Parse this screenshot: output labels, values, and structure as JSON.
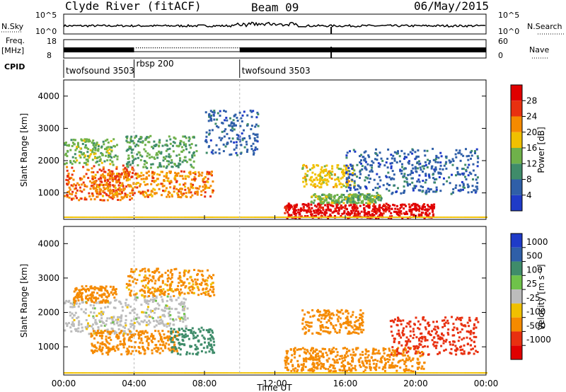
{
  "header": {
    "title": "Clyde River (fitACF)",
    "beam": "Beam 09",
    "date": "06/May/2015"
  },
  "upper_panels": {
    "nsky_label": "N.Sky",
    "nsky_ticks": [
      "10^5",
      "10^0"
    ],
    "nsearch_label": "N.Search",
    "nsearch_ticks": [
      "10^5",
      "10^0"
    ],
    "freq_label": "Freq.",
    "freq_unit": "[MHz]",
    "freq_ticks": [
      "18",
      "8"
    ],
    "nave_label": "Nave",
    "nave_ticks": [
      "60",
      "0"
    ],
    "cpid_label": "CPID",
    "cpid_segments": [
      {
        "name": "twofsound 3503",
        "start_h": 0.0,
        "end_h": 4.0
      },
      {
        "name": "rbsp 200",
        "start_h": 4.0,
        "end_h": 10.0
      },
      {
        "name": "twofsound 3503",
        "start_h": 10.0,
        "end_h": 24.0
      }
    ]
  },
  "power_colorbar": {
    "label": "Power [dB]",
    "ticks": [
      "4",
      "8",
      "12",
      "16",
      "20",
      "24",
      "28"
    ],
    "colors": [
      "#1f3bc8",
      "#2f5fa8",
      "#3f8c6a",
      "#6fb14a",
      "#f0c000",
      "#f58a00",
      "#e83010",
      "#e00000"
    ]
  },
  "velocity_colorbar": {
    "label": "Velocity [m s⁻¹]",
    "ticks": [
      "1000",
      "500",
      "100",
      "25",
      "-25",
      "-100",
      "-500",
      "-1000"
    ],
    "colors": [
      "#1f3bc8",
      "#2f5fa8",
      "#3f8c6a",
      "#6fc24a",
      "#bcbcbc",
      "#f0c000",
      "#f58a00",
      "#e83010",
      "#e00000"
    ]
  },
  "chart_data": [
    {
      "type": "heatmap",
      "title": "",
      "xlabel": "",
      "ylabel": "Slant Range [km]",
      "xlim": [
        0,
        24
      ],
      "ylim": [
        180,
        4500
      ],
      "x_ticks": [
        "00:00",
        "04:00",
        "08:00",
        "12:00",
        "16:00",
        "20:00",
        "00:00"
      ],
      "y_ticks": [
        1000,
        2000,
        3000,
        4000
      ],
      "colorbar": "Power [dB]",
      "regions": [
        {
          "t0": 0.0,
          "t1": 4.0,
          "r0": 800,
          "r1": 1900,
          "value": 24
        },
        {
          "t0": 1.5,
          "t1": 8.5,
          "r0": 900,
          "r1": 1700,
          "value": 22
        },
        {
          "t0": 0.0,
          "t1": 3.0,
          "r0": 1900,
          "r1": 2700,
          "value": 14
        },
        {
          "t0": 3.5,
          "t1": 7.5,
          "r0": 1800,
          "r1": 2800,
          "value": 12
        },
        {
          "t0": 8.0,
          "t1": 11.0,
          "r0": 2200,
          "r1": 3600,
          "value": 6
        },
        {
          "t0": 12.5,
          "t1": 21.0,
          "r0": 250,
          "r1": 700,
          "value": 30
        },
        {
          "t0": 14.0,
          "t1": 18.0,
          "r0": 700,
          "r1": 1000,
          "value": 14
        },
        {
          "t0": 13.5,
          "t1": 16.5,
          "r0": 1200,
          "r1": 1900,
          "value": 18
        },
        {
          "t0": 16.0,
          "t1": 23.5,
          "r0": 1000,
          "r1": 2400,
          "value": 6
        }
      ]
    },
    {
      "type": "heatmap",
      "title": "",
      "xlabel": "Time UT",
      "ylabel": "Slant Range [km]",
      "xlim": [
        0,
        24
      ],
      "ylim": [
        180,
        4500
      ],
      "x_ticks": [
        "00:00",
        "04:00",
        "08:00",
        "12:00",
        "16:00",
        "20:00",
        "00:00"
      ],
      "y_ticks": [
        1000,
        2000,
        3000,
        4000
      ],
      "colorbar": "Velocity [m s⁻¹]",
      "regions": [
        {
          "t0": 0.0,
          "t1": 4.0,
          "r0": 1400,
          "r1": 2400,
          "value": 0
        },
        {
          "t0": 4.0,
          "t1": 7.0,
          "r0": 1600,
          "r1": 2500,
          "value": 0
        },
        {
          "t0": 1.5,
          "t1": 6.5,
          "r0": 800,
          "r1": 1500,
          "value": -300
        },
        {
          "t0": 6.0,
          "t1": 8.5,
          "r0": 800,
          "r1": 1600,
          "value": 200
        },
        {
          "t0": 0.5,
          "t1": 3.0,
          "r0": 2300,
          "r1": 2800,
          "value": -150
        },
        {
          "t0": 3.5,
          "t1": 8.5,
          "r0": 2500,
          "r1": 3300,
          "value": -120
        },
        {
          "t0": 12.5,
          "t1": 20.5,
          "r0": 300,
          "r1": 1000,
          "value": -300
        },
        {
          "t0": 13.5,
          "t1": 17.0,
          "r0": 1400,
          "r1": 2100,
          "value": -250
        },
        {
          "t0": 18.5,
          "t1": 23.5,
          "r0": 800,
          "r1": 1900,
          "value": -600
        }
      ]
    }
  ]
}
